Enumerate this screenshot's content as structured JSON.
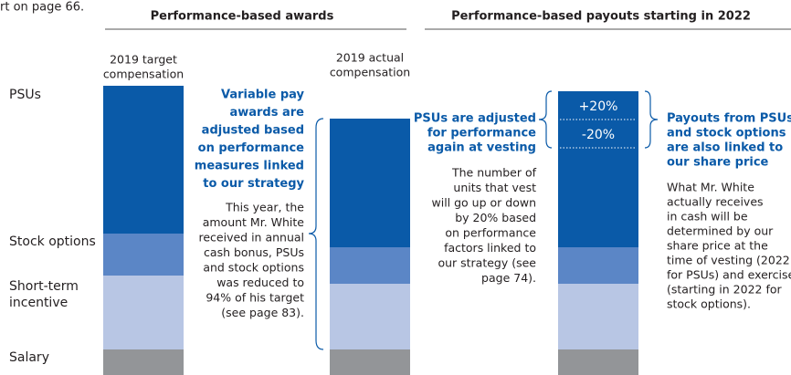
{
  "cutoff_text": "rt on page 66.",
  "headers": [
    "Performance-based awards",
    "Performance-based payouts starting in 2022"
  ],
  "columns": [
    [
      "2019 target",
      "compensation"
    ],
    [
      "2019 actual",
      "compensation"
    ]
  ],
  "row_labels": [
    [
      "PSUs"
    ],
    [
      "Stock options"
    ],
    [
      "Short-term",
      "incentive"
    ],
    [
      "Salary"
    ]
  ],
  "range_labels": [
    "+20%",
    "-20%"
  ],
  "notes": [
    {
      "heading": [
        "Variable pay",
        "awards are",
        "adjusted based",
        "on performance",
        "measures linked",
        "to our strategy"
      ],
      "body": [
        "This year, the",
        "amount Mr. White",
        "received in annual",
        "cash bonus, PSUs",
        "and stock options",
        "was reduced to",
        "94% of his target",
        "(see page 83)."
      ]
    },
    {
      "heading": [
        "PSUs are adjusted",
        "for performance",
        "again at vesting"
      ],
      "body": [
        "The number of",
        "units that vest",
        "will go up or down",
        "by 20% based",
        "on performance",
        "factors linked to",
        "our strategy (see",
        "page 74)."
      ]
    },
    {
      "heading": [
        "Payouts from PSUs",
        "and stock options",
        "are also linked to",
        "our share price"
      ],
      "body": [
        "What Mr. White",
        "actually receives",
        "in cash will be",
        "determined by our",
        "share price at the",
        "time of vesting (2022",
        "for PSUs) and exercise",
        "(starting in 2022 for",
        "stock options)."
      ]
    }
  ]
}
